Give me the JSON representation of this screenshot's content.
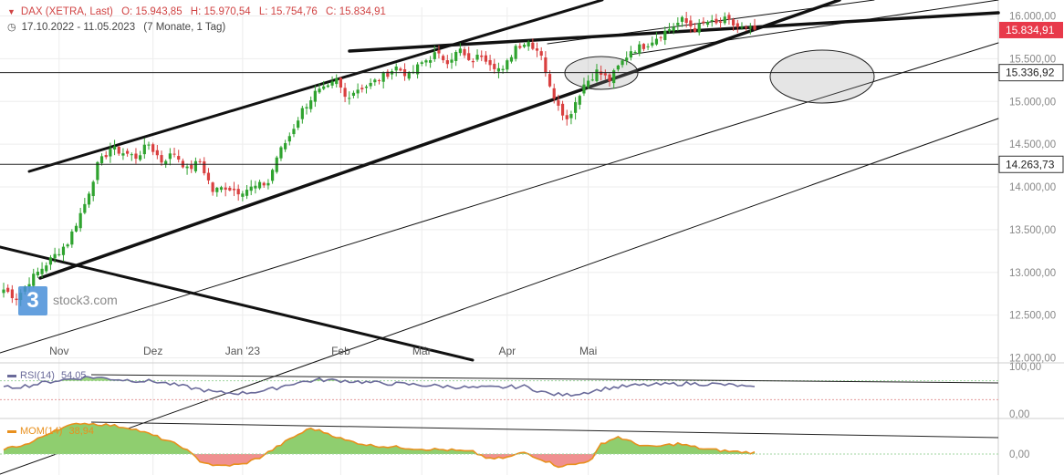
{
  "header": {
    "instrument": "DAX (XETRA, Last)",
    "open": "O: 15.943,85",
    "high": "H: 15.970,54",
    "low": "L: 15.754,76",
    "close": "C: 15.834,91",
    "range": "17.10.2022 - 11.05.2023",
    "period": "(7 Monate, 1 Tag)"
  },
  "watermark": {
    "name": "stock3.com",
    "glyph": "3"
  },
  "colors": {
    "up": "#2fa32f",
    "down": "#d94040",
    "rsi": "#6a6a9a",
    "mom": "#e8901e",
    "mom_pos": "#8fce6f",
    "mom_neg": "#f09090",
    "price_badge": "#e8394a"
  },
  "price_labels": {
    "last": "15.834,91",
    "level1": "15.336,92",
    "level2": "14.263,73"
  },
  "chart_data": [
    {
      "type": "candlestick",
      "title": "DAX (XETRA, Last)",
      "y_ticks": [
        "12.000,00",
        "12.500,00",
        "13.000,00",
        "13.500,00",
        "14.000,00",
        "14.500,00",
        "15.000,00",
        "15.500,00",
        "16.000,00"
      ],
      "x_ticks": [
        "Nov",
        "Dez",
        "Jan '23",
        "Feb",
        "Mär",
        "Apr",
        "Mai"
      ],
      "ylim": [
        12000,
        16080
      ],
      "horizontal_levels": [
        15336.92,
        14263.73
      ],
      "last": 15834.91,
      "anchors": [
        [
          0,
          12800
        ],
        [
          3,
          12700
        ],
        [
          6,
          12900
        ],
        [
          10,
          13100
        ],
        [
          15,
          13350
        ],
        [
          19,
          13800
        ],
        [
          22,
          14250
        ],
        [
          25,
          14450
        ],
        [
          28,
          14400
        ],
        [
          31,
          14350
        ],
        [
          34,
          14500
        ],
        [
          37,
          14300
        ],
        [
          40,
          14400
        ],
        [
          43,
          14200
        ],
        [
          46,
          14300
        ],
        [
          49,
          13950
        ],
        [
          52,
          14000
        ],
        [
          55,
          13950
        ],
        [
          59,
          14000
        ],
        [
          62,
          14050
        ],
        [
          64,
          14350
        ],
        [
          67,
          14600
        ],
        [
          70,
          14900
        ],
        [
          73,
          15100
        ],
        [
          76,
          15150
        ],
        [
          78,
          15250
        ],
        [
          80,
          15050
        ],
        [
          83,
          15150
        ],
        [
          86,
          15200
        ],
        [
          89,
          15300
        ],
        [
          92,
          15400
        ],
        [
          95,
          15300
        ],
        [
          98,
          15450
        ],
        [
          101,
          15550
        ],
        [
          104,
          15480
        ],
        [
          107,
          15600
        ],
        [
          109,
          15450
        ],
        [
          112,
          15550
        ],
        [
          115,
          15420
        ],
        [
          117,
          15350
        ],
        [
          120,
          15650
        ],
        [
          123,
          15700
        ],
        [
          126,
          15560
        ],
        [
          128,
          15150
        ],
        [
          130,
          14980
        ],
        [
          132,
          14780
        ],
        [
          134,
          15000
        ],
        [
          136,
          15200
        ],
        [
          139,
          15350
        ],
        [
          142,
          15250
        ],
        [
          144,
          15400
        ],
        [
          147,
          15600
        ],
        [
          150,
          15650
        ],
        [
          153,
          15750
        ],
        [
          156,
          15850
        ],
        [
          159,
          15950
        ],
        [
          162,
          15850
        ],
        [
          165,
          15930
        ],
        [
          167,
          15900
        ],
        [
          169,
          15950
        ],
        [
          172,
          15870
        ],
        [
          174,
          15840
        ],
        [
          176,
          15835
        ]
      ]
    },
    {
      "type": "line",
      "title": "RSI(14)",
      "value_label": "54,05",
      "y_ticks": [
        "100,00",
        "0,00"
      ],
      "ylim": [
        0,
        100
      ],
      "anchors": [
        [
          0,
          55
        ],
        [
          6,
          60
        ],
        [
          12,
          70
        ],
        [
          20,
          78
        ],
        [
          28,
          72
        ],
        [
          36,
          68
        ],
        [
          44,
          55
        ],
        [
          50,
          45
        ],
        [
          56,
          44
        ],
        [
          62,
          50
        ],
        [
          68,
          65
        ],
        [
          74,
          72
        ],
        [
          80,
          70
        ],
        [
          88,
          65
        ],
        [
          96,
          62
        ],
        [
          104,
          58
        ],
        [
          110,
          55
        ],
        [
          116,
          56
        ],
        [
          122,
          58
        ],
        [
          128,
          42
        ],
        [
          132,
          40
        ],
        [
          136,
          45
        ],
        [
          142,
          55
        ],
        [
          148,
          60
        ],
        [
          154,
          62
        ],
        [
          160,
          64
        ],
        [
          166,
          63
        ],
        [
          172,
          60
        ],
        [
          176,
          54
        ]
      ]
    },
    {
      "type": "area",
      "title": "MOM(14)",
      "value_label": "38,94",
      "y_ticks": [
        "0,00"
      ],
      "anchors": [
        [
          0,
          150
        ],
        [
          6,
          300
        ],
        [
          12,
          700
        ],
        [
          18,
          900
        ],
        [
          24,
          850
        ],
        [
          30,
          750
        ],
        [
          36,
          500
        ],
        [
          42,
          200
        ],
        [
          46,
          -200
        ],
        [
          50,
          -350
        ],
        [
          56,
          -300
        ],
        [
          60,
          -100
        ],
        [
          64,
          200
        ],
        [
          68,
          500
        ],
        [
          72,
          750
        ],
        [
          76,
          600
        ],
        [
          80,
          400
        ],
        [
          86,
          250
        ],
        [
          92,
          200
        ],
        [
          98,
          150
        ],
        [
          104,
          120
        ],
        [
          110,
          60
        ],
        [
          114,
          -150
        ],
        [
          118,
          -100
        ],
        [
          122,
          50
        ],
        [
          126,
          -150
        ],
        [
          130,
          -350
        ],
        [
          134,
          -300
        ],
        [
          138,
          -150
        ],
        [
          140,
          300
        ],
        [
          144,
          500
        ],
        [
          148,
          300
        ],
        [
          152,
          200
        ],
        [
          158,
          300
        ],
        [
          164,
          150
        ],
        [
          170,
          80
        ],
        [
          176,
          39
        ]
      ]
    }
  ]
}
